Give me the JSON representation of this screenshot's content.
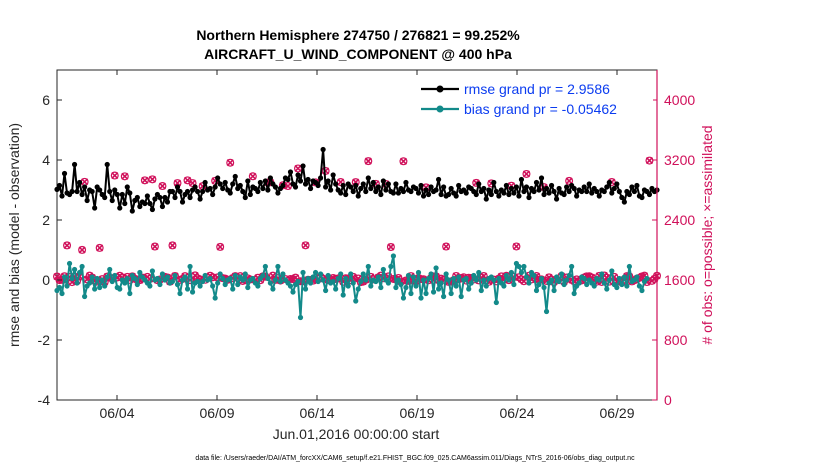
{
  "chart_data": {
    "type": "line",
    "title": "Northern Hemisphere 274750 / 276821 = 99.252%",
    "subtitle": "AIRCRAFT_U_WIND_COMPONENT @ 400 hPa",
    "xlabel": "Jun.01,2016 00:00:00 start",
    "ylabel": "rmse and bias (model - observation)",
    "y2label": "# of obs: o=possible; ×=assimilated",
    "xlim": [
      1,
      31
    ],
    "ylim": [
      -4,
      7
    ],
    "y2lim": [
      0,
      4400
    ],
    "x_ticks": [
      4,
      9,
      14,
      19,
      24,
      29
    ],
    "x_tick_labels": [
      "06/04",
      "06/09",
      "06/14",
      "06/19",
      "06/24",
      "06/29"
    ],
    "y_ticks": [
      -4,
      -2,
      0,
      2,
      4,
      6
    ],
    "y_tick_labels": [
      "-4",
      "-2",
      "0",
      "2",
      "4",
      "6"
    ],
    "y2_ticks": [
      0,
      800,
      1600,
      2400,
      3200,
      4000
    ],
    "y2_tick_labels": [
      "0",
      "800",
      "1600",
      "2400",
      "3200",
      "4000"
    ],
    "legend_position": "top-right",
    "colors": {
      "rmse": "#000000",
      "bias": "#138a8a",
      "obs": "#d0105a",
      "legend_text": "#0b3cf0",
      "zero_line": "#b0b0b0"
    },
    "series": [
      {
        "name": "rmse",
        "legend": "rmse grand pr = 2.9586",
        "values": [
          3.02,
          3.15,
          2.8,
          3.55,
          2.9,
          2.85,
          2.95,
          3.85,
          2.95,
          3.25,
          2.85,
          3.1,
          2.65,
          3.0,
          2.95,
          2.4,
          3.1,
          3.0,
          2.85,
          2.75,
          3.85,
          2.95,
          2.65,
          3.0,
          2.85,
          2.4,
          2.85,
          2.55,
          3.1,
          2.9,
          2.3,
          2.65,
          2.75,
          2.45,
          2.6,
          2.55,
          2.8,
          2.55,
          2.35,
          2.7,
          2.85,
          2.75,
          2.45,
          2.75,
          2.6,
          2.95,
          2.95,
          2.75,
          3.1,
          2.95,
          2.6,
          2.85,
          2.95,
          2.75,
          3.0,
          3.1,
          2.95,
          2.7,
          2.95,
          3.25,
          3.0,
          3.05,
          2.85,
          3.1,
          3.4,
          3.2,
          3.05,
          3.25,
          3.0,
          2.9,
          3.2,
          3.45,
          3.05,
          3.15,
          2.95,
          2.75,
          3.3,
          2.85,
          3.1,
          3.05,
          2.95,
          3.25,
          3.05,
          3.3,
          3.0,
          3.4,
          3.2,
          3.1,
          2.9,
          3.05,
          3.15,
          3.4,
          3.35,
          3.6,
          3.2,
          3.1,
          3.5,
          3.3,
          3.8,
          3.2,
          3.35,
          3.05,
          3.3,
          3.25,
          3.15,
          3.4,
          4.35,
          3.1,
          3.3,
          3.0,
          3.5,
          3.2,
          3.0,
          2.9,
          3.15,
          2.85,
          3.2,
          3.1,
          2.95,
          3.15,
          2.8,
          3.05,
          3.2,
          2.95,
          3.4,
          3.05,
          3.25,
          2.95,
          3.1,
          2.85,
          3.3,
          3.0,
          3.2,
          2.95,
          2.9,
          3.2,
          2.9,
          3.05,
          2.95,
          3.25,
          3.0,
          2.95,
          3.1,
          3.05,
          2.9,
          3.15,
          2.8,
          3.0,
          2.85,
          3.1,
          2.95,
          3.0,
          3.35,
          2.85,
          3.1,
          2.8,
          2.85,
          3.05,
          2.9,
          2.8,
          3.15,
          2.95,
          3.0,
          2.9,
          3.1,
          3.05,
          2.95,
          2.85,
          3.2,
          2.95,
          3.05,
          2.7,
          3.0,
          2.85,
          3.25,
          2.95,
          2.8,
          3.0,
          2.9,
          3.15,
          2.85,
          3.05,
          2.9,
          3.1,
          2.8,
          3.35,
          2.95,
          3.1,
          2.75,
          3.05,
          2.95,
          3.25,
          3.0,
          3.4,
          2.85,
          3.05,
          2.9,
          3.15,
          2.95,
          2.7,
          3.05,
          2.9,
          2.85,
          3.1,
          2.95,
          3.15,
          3.05,
          2.8,
          3.0,
          2.95,
          3.1,
          2.95,
          3.2,
          2.9,
          3.05,
          2.95,
          2.8,
          3.0,
          2.95,
          3.1,
          3.25,
          2.9,
          3.05,
          3.2,
          2.95,
          2.75,
          2.6,
          2.95,
          2.85,
          3.1,
          2.95,
          3.15,
          2.8,
          2.75,
          3.0,
          2.95,
          2.85,
          3.05,
          2.95,
          3.0
        ]
      },
      {
        "name": "bias",
        "legend": "bias grand pr = -0.05462",
        "values": [
          -0.35,
          -0.25,
          -0.45,
          0.1,
          -0.2,
          0.55,
          0.05,
          0.35,
          -0.1,
          0.25,
          0.45,
          -0.55,
          -0.2,
          -0.1,
          0.1,
          -0.3,
          0.05,
          -0.25,
          0.0,
          -0.2,
          0.1,
          0.35,
          -0.05,
          0.15,
          -0.25,
          -0.3,
          0.0,
          -0.1,
          0.05,
          -0.45,
          0.15,
          0.05,
          -0.15,
          0.25,
          0.1,
          0.0,
          -0.1,
          -0.2,
          0.3,
          0.0,
          0.05,
          -0.15,
          0.2,
          0.0,
          0.1,
          -0.1,
          -0.05,
          0.15,
          -0.15,
          -0.45,
          0.0,
          0.1,
          -0.3,
          0.45,
          -0.4,
          -0.1,
          -0.05,
          -0.2,
          -0.05,
          0.15,
          0.0,
          0.05,
          -0.2,
          -0.6,
          -0.1,
          0.2,
          0.05,
          -0.15,
          0.0,
          0.05,
          -0.3,
          0.15,
          -0.15,
          0.1,
          0.0,
          0.2,
          -0.25,
          0.0,
          0.05,
          -0.1,
          -0.2,
          0.05,
          0.15,
          0.45,
          0.05,
          -0.1,
          -0.3,
          0.0,
          0.45,
          -0.05,
          0.2,
          0.0,
          -0.1,
          -0.2,
          -0.4,
          -0.15,
          -0.05,
          -1.25,
          0.25,
          -0.3,
          0.05,
          -0.1,
          0.1,
          0.25,
          -0.05,
          0.2,
          0.0,
          -0.35,
          0.15,
          -0.1,
          -0.05,
          -0.3,
          0.05,
          0.2,
          -0.5,
          0.05,
          -0.2,
          0.2,
          -0.1,
          -0.7,
          -0.3,
          -0.05,
          0.2,
          0.0,
          0.45,
          -0.2,
          0.0,
          -0.05,
          0.1,
          -0.25,
          0.35,
          0.0,
          -0.1,
          0.45,
          0.8,
          -0.25,
          0.0,
          -0.15,
          -0.6,
          -0.25,
          0.15,
          -0.45,
          0.1,
          -0.2,
          0.25,
          -0.6,
          0.0,
          -0.45,
          0.05,
          0.2,
          -0.4,
          0.4,
          -0.3,
          -0.1,
          -0.55,
          0.2,
          0.0,
          -0.45,
          0.05,
          -0.2,
          0.1,
          -0.55,
          0.0,
          0.05,
          -0.3,
          -0.1,
          0.15,
          0.0,
          0.25,
          -0.35,
          0.0,
          -0.2,
          0.05,
          0.1,
          0.0,
          -0.75,
          0.05,
          -0.1,
          -0.2,
          0.15,
          0.0,
          0.25,
          -0.15,
          0.55,
          0.45,
          0.25,
          0.45,
          0.1,
          -0.1,
          0.25,
          0.15,
          -0.35,
          -0.15,
          0.05,
          -0.25,
          -1.05,
          -0.1,
          0.0,
          -0.35,
          0.1,
          -0.05,
          0.2,
          -0.15,
          0.0,
          0.15,
          0.45,
          -0.45,
          -0.2,
          -0.1,
          0.1,
          0.05,
          -0.15,
          0.0,
          -0.1,
          -0.2,
          0.05,
          0.0,
          0.2,
          -0.1,
          -0.3,
          0.0,
          0.3,
          -0.15,
          -0.25,
          0.05,
          -0.15,
          0.1,
          -0.2,
          0.45,
          -0.05,
          0.0,
          0.1,
          -0.2,
          -0.35,
          -0.05,
          0.05
        ]
      }
    ],
    "obs_possible": [
      1646,
      1599,
      1601,
      1650,
      2061,
      1640,
      1572,
      1645,
      1588,
      1649,
      2001,
      2909,
      1609,
      1658,
      1632,
      1589,
      1580,
      2028,
      1611,
      1572,
      1645,
      1631,
      1621,
      2993,
      1634,
      1656,
      1633,
      2982,
      1641,
      1601,
      1649,
      1616,
      1602,
      1598,
      1632,
      2929,
      1641,
      1614,
      2942,
      2046,
      1597,
      1606,
      2853,
      1641,
      1634,
      1577,
      2061,
      1654,
      2892,
      1601,
      1614,
      1651,
      2929,
      1599,
      2892,
      1661,
      1622,
      1608,
      2851,
      1603,
      1627,
      1656,
      1636,
      2922,
      1635,
      2041,
      1625,
      1618,
      1603,
      3164,
      1625,
      1651,
      1630,
      1651,
      1587,
      1601,
      1621,
      1607,
      2983,
      1600,
      1630,
      1597,
      1648,
      1645,
      2900,
      2903,
      1658,
      1601,
      1625,
      1592,
      2863,
      1612,
      2853,
      1613,
      1612,
      1631,
      3087,
      1584,
      1584,
      2062,
      1603,
      1600,
      1591,
      2901,
      1614,
      1640,
      1618,
      3054,
      1599,
      1597,
      1626,
      1614,
      1621,
      2906,
      1577,
      1623,
      1622,
      1597,
      1641,
      2905,
      1620,
      1571,
      1579,
      1603,
      3185,
      1642,
      1608,
      2882,
      1635,
      1658,
      1623,
      2880,
      1648,
      2040,
      1614,
      1609,
      1627,
      1580,
      3183,
      1593,
      1588,
      1652,
      1609,
      1583,
      1625,
      1612,
      1610,
      2835,
      1596,
      1624,
      1649,
      1647,
      1598,
      1618,
      1604,
      2046,
      1575,
      1579,
      1596,
      1654,
      1610,
      1626,
      1636,
      1592,
      1630,
      1626,
      1608,
      2895,
      1595,
      1632,
      1653,
      1592,
      1576,
      2888,
      1605,
      1582,
      1618,
      1648,
      1603,
      1656,
      1598,
      2857,
      1641,
      2047,
      1636,
      1609,
      1584,
      3014,
      1656,
      1608,
      1635,
      1653,
      1604,
      1608,
      2838,
      1587,
      1635,
      1605,
      1573,
      1602,
      1624,
      1653,
      1578,
      1633,
      2921,
      1601,
      1585,
      1608,
      1586,
      1595,
      1633,
      1649,
      1650,
      1634,
      1590,
      1578,
      1655,
      1574,
      1660,
      1630,
      1578,
      2906,
      1641,
      1579,
      1582,
      1571,
      1608,
      1651,
      1646,
      1581,
      1597,
      1615,
      1629,
      1647,
      1658,
      1573,
      3192,
      1589,
      1615,
      1656
    ],
    "obs_assimilated": [
      1646,
      1599,
      1601,
      1650,
      2061,
      1640,
      1572,
      1645,
      1588,
      1649,
      2001,
      2909,
      1609,
      1658,
      1632,
      1589,
      1580,
      2028,
      1611,
      1572,
      1645,
      1631,
      1621,
      2993,
      1634,
      1656,
      1633,
      2982,
      1641,
      1601,
      1649,
      1616,
      1602,
      1598,
      1632,
      2929,
      1641,
      1614,
      2942,
      2046,
      1597,
      1606,
      2853,
      1641,
      1634,
      1577,
      2061,
      1654,
      2892,
      1601,
      1614,
      1651,
      2929,
      1599,
      2892,
      1661,
      1622,
      1608,
      2851,
      1603,
      1627,
      1656,
      1636,
      2922,
      1635,
      2041,
      1625,
      1618,
      1603,
      3164,
      1625,
      1651,
      1630,
      1651,
      1587,
      1601,
      1621,
      1607,
      2983,
      1600,
      1630,
      1597,
      1648,
      1645,
      2900,
      2903,
      1658,
      1601,
      1625,
      1592,
      2863,
      1612,
      2853,
      1613,
      1612,
      1631,
      3087,
      1584,
      1584,
      2062,
      1603,
      1600,
      1591,
      2901,
      1614,
      1640,
      1618,
      3054,
      1599,
      1597,
      1626,
      1614,
      1621,
      2906,
      1577,
      1623,
      1622,
      1597,
      1641,
      2905,
      1620,
      1571,
      1579,
      1603,
      3185,
      1642,
      1608,
      2882,
      1635,
      1658,
      1623,
      2880,
      1648,
      2040,
      1614,
      1609,
      1627,
      1580,
      3183,
      1593,
      1588,
      1652,
      1609,
      1583,
      1625,
      1612,
      1610,
      2835,
      1596,
      1624,
      1649,
      1647,
      1598,
      1618,
      1604,
      2046,
      1575,
      1579,
      1596,
      1654,
      1610,
      1626,
      1636,
      1592,
      1630,
      1626,
      1608,
      2895,
      1595,
      1632,
      1653,
      1592,
      1576,
      2888,
      1605,
      1582,
      1618,
      1648,
      1603,
      1656,
      1598,
      2857,
      1641,
      2047,
      1636,
      1609,
      1584,
      3014,
      1656,
      1608,
      1635,
      1653,
      1604,
      1608,
      2838,
      1587,
      1635,
      1605,
      1573,
      1602,
      1624,
      1653,
      1578,
      1633,
      2921,
      1601,
      1585,
      1608,
      1586,
      1595,
      1633,
      1649,
      1650,
      1634,
      1590,
      1578,
      1655,
      1574,
      1660,
      1630,
      1578,
      2906,
      1641,
      1579,
      1582,
      1571,
      1608,
      1651,
      1646,
      1581,
      1597,
      1615,
      1629,
      1647,
      1658,
      1573,
      3192,
      1589,
      1615,
      1656
    ]
  },
  "footer": "data file: /Users/raeder/DAI/ATM_forcXX/CAM6_setup/f.e21.FHIST_BGC.f09_025.CAM6assim.011/Diags_NTrS_2016-06/obs_diag_output.nc"
}
